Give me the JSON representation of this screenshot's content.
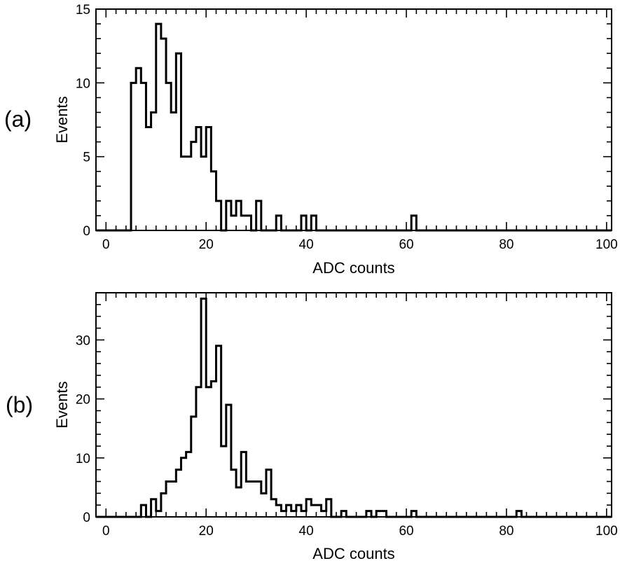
{
  "chart_data": [
    {
      "type": "histogram",
      "panel_label": "(a)",
      "xlabel": "ADC counts",
      "ylabel": "Events",
      "xlim": [
        -2,
        101
      ],
      "ylim": [
        0,
        15
      ],
      "xticks": [
        0,
        20,
        40,
        60,
        80,
        100
      ],
      "yticks": [
        0,
        5,
        10,
        15
      ],
      "grid": false,
      "bin_width": 1,
      "bins": [
        -2,
        -1,
        0,
        1,
        2,
        3,
        4,
        5,
        6,
        7,
        8,
        9,
        10,
        11,
        12,
        13,
        14,
        15,
        16,
        17,
        18,
        19,
        20,
        21,
        22,
        23,
        24,
        25,
        26,
        27,
        28,
        29,
        30,
        31,
        32,
        33,
        34,
        35,
        36,
        37,
        38,
        39,
        40,
        41,
        42,
        43,
        44,
        45,
        46,
        47,
        48,
        49,
        50,
        51,
        52,
        53,
        54,
        55,
        56,
        57,
        58,
        59,
        60,
        61,
        62,
        63,
        64,
        65,
        66,
        67,
        68,
        69,
        70,
        71,
        72,
        73,
        74,
        75,
        76,
        77,
        78,
        79,
        80,
        81,
        82,
        83,
        84,
        85,
        86,
        87,
        88,
        89,
        90,
        91,
        92,
        93,
        94,
        95,
        96,
        97,
        98,
        99,
        100
      ],
      "values": [
        0,
        0,
        0,
        0,
        0,
        0,
        0,
        10,
        11,
        10,
        7,
        8,
        14,
        13,
        10,
        8,
        12,
        5,
        5,
        6,
        7,
        5,
        7,
        4,
        2,
        0,
        2,
        1,
        2,
        1,
        1,
        0,
        2,
        0,
        0,
        0,
        1,
        0,
        0,
        0,
        0,
        1,
        0,
        1,
        0,
        0,
        0,
        0,
        0,
        0,
        0,
        0,
        0,
        0,
        0,
        0,
        0,
        0,
        0,
        0,
        0,
        0,
        0,
        1,
        0,
        0,
        0,
        0,
        0,
        0,
        0,
        0,
        0,
        0,
        0,
        0,
        0,
        0,
        0,
        0,
        0,
        0,
        0,
        0,
        0,
        0,
        0,
        0,
        0,
        0,
        0,
        0,
        0,
        0,
        0,
        0,
        0,
        0,
        0,
        0,
        0,
        0,
        0
      ]
    },
    {
      "type": "histogram",
      "panel_label": "(b)",
      "xlabel": "ADC counts",
      "ylabel": "Events",
      "xlim": [
        -2,
        101
      ],
      "ylim": [
        0,
        38
      ],
      "xticks": [
        0,
        20,
        40,
        60,
        80,
        100
      ],
      "yticks": [
        0,
        10,
        20,
        30
      ],
      "grid": false,
      "bin_width": 1,
      "bins": [
        -2,
        -1,
        0,
        1,
        2,
        3,
        4,
        5,
        6,
        7,
        8,
        9,
        10,
        11,
        12,
        13,
        14,
        15,
        16,
        17,
        18,
        19,
        20,
        21,
        22,
        23,
        24,
        25,
        26,
        27,
        28,
        29,
        30,
        31,
        32,
        33,
        34,
        35,
        36,
        37,
        38,
        39,
        40,
        41,
        42,
        43,
        44,
        45,
        46,
        47,
        48,
        49,
        50,
        51,
        52,
        53,
        54,
        55,
        56,
        57,
        58,
        59,
        60,
        61,
        62,
        63,
        64,
        65,
        66,
        67,
        68,
        69,
        70,
        71,
        72,
        73,
        74,
        75,
        76,
        77,
        78,
        79,
        80,
        81,
        82,
        83,
        84,
        85,
        86,
        87,
        88,
        89,
        90,
        91,
        92,
        93,
        94,
        95,
        96,
        97,
        98,
        99,
        100
      ],
      "values": [
        0,
        0,
        0,
        0,
        0,
        0,
        0,
        0,
        0,
        2,
        0,
        3,
        1,
        4,
        6,
        6,
        8,
        10,
        11,
        17,
        22,
        37,
        22,
        23,
        29,
        12,
        19,
        8,
        5,
        11,
        6,
        6,
        6,
        4,
        8,
        3,
        2,
        1,
        2,
        1,
        2,
        1,
        3,
        2,
        2,
        1,
        3,
        0,
        0,
        1,
        0,
        0,
        0,
        0,
        1,
        0,
        1,
        1,
        0,
        0,
        0,
        0,
        0,
        1,
        0,
        0,
        0,
        0,
        0,
        0,
        0,
        0,
        0,
        0,
        0,
        0,
        0,
        0,
        0,
        0,
        0,
        0,
        0,
        0,
        1,
        0,
        0,
        0,
        0,
        0,
        0,
        0,
        0,
        0,
        0,
        0,
        0,
        0,
        0,
        0,
        0,
        0,
        0
      ]
    }
  ]
}
